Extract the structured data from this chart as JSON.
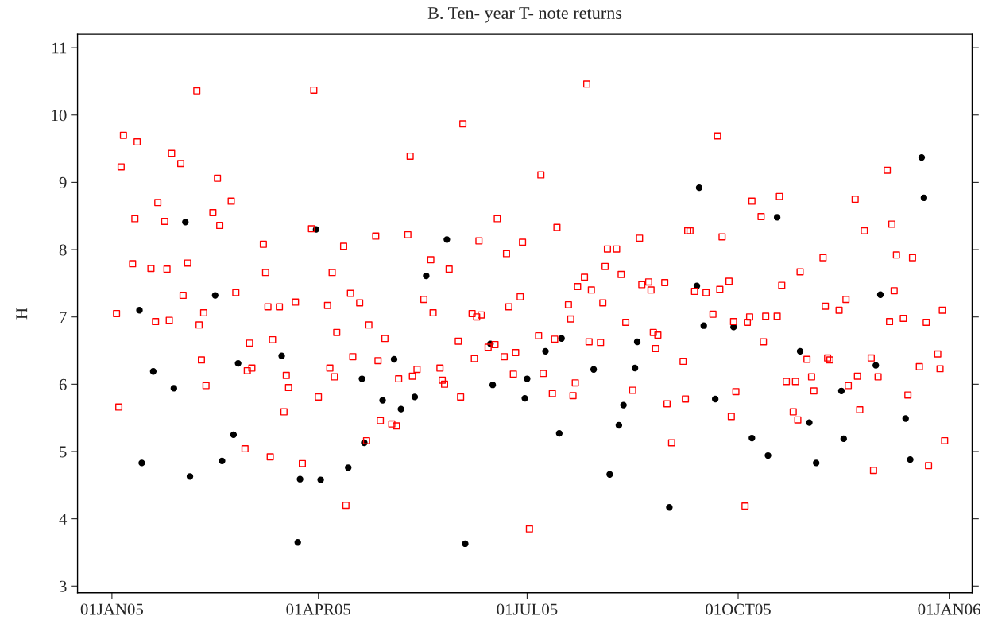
{
  "chart_data": {
    "type": "scatter",
    "title": "B. Ten- year T- note returns",
    "ylabel": "H",
    "xlim": [
      "2004-12-17",
      "2006-01-11"
    ],
    "xticks": [
      {
        "value": "2005-01-01",
        "label": "01JAN05"
      },
      {
        "value": "2005-04-01",
        "label": "01APR05"
      },
      {
        "value": "2005-07-01",
        "label": "01JUL05"
      },
      {
        "value": "2005-10-01",
        "label": "01OCT05"
      },
      {
        "value": "2006-01-01",
        "label": "01JAN06"
      }
    ],
    "ylim": [
      2.9,
      11.2
    ],
    "yticks": [
      3,
      4,
      5,
      6,
      7,
      8,
      9,
      10,
      11
    ],
    "series": [
      {
        "color": "#000000",
        "marker": "circle",
        "x": [
          "2005-01-13",
          "2005-01-19",
          "2005-01-14",
          "2005-01-28",
          "2005-02-02",
          "2005-02-04",
          "2005-02-15",
          "2005-02-18",
          "2005-02-23",
          "2005-02-25",
          "2005-03-16",
          "2005-03-23",
          "2005-03-24",
          "2005-03-31",
          "2005-04-02",
          "2005-04-14",
          "2005-04-20",
          "2005-04-21",
          "2005-04-29",
          "2005-05-04",
          "2005-05-07",
          "2005-05-13",
          "2005-05-18",
          "2005-05-27",
          "2005-06-04",
          "2005-06-15",
          "2005-06-16",
          "2005-06-30",
          "2005-07-01",
          "2005-07-09",
          "2005-07-15",
          "2005-07-16",
          "2005-07-30",
          "2005-08-06",
          "2005-08-10",
          "2005-08-12",
          "2005-08-17",
          "2005-08-18",
          "2005-09-01",
          "2005-09-13",
          "2005-09-14",
          "2005-09-16",
          "2005-09-21",
          "2005-09-29",
          "2005-10-07",
          "2005-10-14",
          "2005-10-18",
          "2005-10-28",
          "2005-11-01",
          "2005-11-04",
          "2005-11-15",
          "2005-11-16",
          "2005-11-30",
          "2005-12-02",
          "2005-12-13",
          "2005-12-15",
          "2005-12-20",
          "2005-12-21"
        ],
        "values": [
          7.1,
          6.19,
          4.83,
          5.94,
          8.41,
          4.63,
          7.32,
          4.86,
          5.25,
          6.31,
          6.42,
          3.65,
          4.59,
          8.3,
          4.58,
          4.76,
          6.08,
          5.13,
          5.76,
          6.37,
          5.63,
          5.81,
          7.61,
          8.15,
          3.63,
          6.6,
          5.99,
          5.79,
          6.08,
          6.49,
          5.27,
          6.68,
          6.22,
          4.66,
          5.39,
          5.69,
          6.24,
          6.63,
          4.17,
          7.46,
          8.92,
          6.87,
          5.78,
          6.85,
          5.2,
          4.94,
          8.48,
          6.49,
          5.43,
          4.83,
          5.9,
          5.19,
          6.28,
          7.33,
          5.49,
          4.88,
          9.37,
          8.77
        ]
      },
      {
        "color": "#ff0000",
        "marker": "square",
        "x": [
          "2005-01-03",
          "2005-01-04",
          "2005-01-05",
          "2005-01-06",
          "2005-01-10",
          "2005-01-11",
          "2005-01-12",
          "2005-01-18",
          "2005-01-20",
          "2005-01-21",
          "2005-01-24",
          "2005-01-25",
          "2005-01-26",
          "2005-01-27",
          "2005-01-31",
          "2005-02-01",
          "2005-02-03",
          "2005-02-07",
          "2005-02-08",
          "2005-02-09",
          "2005-02-10",
          "2005-02-11",
          "2005-02-14",
          "2005-02-16",
          "2005-02-17",
          "2005-02-22",
          "2005-02-24",
          "2005-02-28",
          "2005-03-01",
          "2005-03-02",
          "2005-03-03",
          "2005-03-08",
          "2005-03-09",
          "2005-03-10",
          "2005-03-11",
          "2005-03-12",
          "2005-03-15",
          "2005-03-17",
          "2005-03-18",
          "2005-03-19",
          "2005-03-22",
          "2005-03-25",
          "2005-03-29",
          "2005-03-30",
          "2005-04-01",
          "2005-04-05",
          "2005-04-06",
          "2005-04-07",
          "2005-04-08",
          "2005-04-09",
          "2005-04-12",
          "2005-04-13",
          "2005-04-15",
          "2005-04-16",
          "2005-04-19",
          "2005-04-22",
          "2005-04-23",
          "2005-04-26",
          "2005-04-27",
          "2005-04-28",
          "2005-04-30",
          "2005-05-03",
          "2005-05-05",
          "2005-05-06",
          "2005-05-10",
          "2005-05-11",
          "2005-05-12",
          "2005-05-14",
          "2005-05-17",
          "2005-05-20",
          "2005-05-21",
          "2005-05-24",
          "2005-05-25",
          "2005-05-26",
          "2005-05-28",
          "2005-06-01",
          "2005-06-02",
          "2005-06-03",
          "2005-06-07",
          "2005-06-08",
          "2005-06-09",
          "2005-06-10",
          "2005-06-11",
          "2005-06-14",
          "2005-06-17",
          "2005-06-18",
          "2005-06-21",
          "2005-06-22",
          "2005-06-23",
          "2005-06-25",
          "2005-06-26",
          "2005-06-28",
          "2005-06-29",
          "2005-07-02",
          "2005-07-06",
          "2005-07-07",
          "2005-07-08",
          "2005-07-12",
          "2005-07-13",
          "2005-07-14",
          "2005-07-19",
          "2005-07-20",
          "2005-07-21",
          "2005-07-22",
          "2005-07-23",
          "2005-07-26",
          "2005-07-27",
          "2005-07-28",
          "2005-07-29",
          "2005-08-02",
          "2005-08-03",
          "2005-08-04",
          "2005-08-05",
          "2005-08-09",
          "2005-08-11",
          "2005-08-13",
          "2005-08-16",
          "2005-08-19",
          "2005-08-20",
          "2005-08-23",
          "2005-08-24",
          "2005-08-25",
          "2005-08-26",
          "2005-08-27",
          "2005-08-30",
          "2005-08-31",
          "2005-09-02",
          "2005-09-07",
          "2005-09-08",
          "2005-09-09",
          "2005-09-10",
          "2005-09-12",
          "2005-09-17",
          "2005-09-20",
          "2005-09-22",
          "2005-09-23",
          "2005-09-24",
          "2005-09-27",
          "2005-09-28",
          "2005-09-29",
          "2005-09-30",
          "2005-10-04",
          "2005-10-05",
          "2005-10-06",
          "2005-10-07",
          "2005-10-11",
          "2005-10-12",
          "2005-10-13",
          "2005-10-18",
          "2005-10-19",
          "2005-10-20",
          "2005-10-22",
          "2005-10-25",
          "2005-10-26",
          "2005-10-27",
          "2005-10-28",
          "2005-10-31",
          "2005-11-02",
          "2005-11-03",
          "2005-11-07",
          "2005-11-08",
          "2005-11-09",
          "2005-11-10",
          "2005-11-14",
          "2005-11-17",
          "2005-11-18",
          "2005-11-21",
          "2005-11-22",
          "2005-11-23",
          "2005-11-25",
          "2005-11-28",
          "2005-11-29",
          "2005-12-01",
          "2005-12-05",
          "2005-12-06",
          "2005-12-07",
          "2005-12-08",
          "2005-12-09",
          "2005-12-12",
          "2005-12-14",
          "2005-12-16",
          "2005-12-19",
          "2005-12-22",
          "2005-12-23",
          "2005-12-27",
          "2005-12-28",
          "2005-12-29",
          "2005-12-30"
        ],
        "values": [
          7.05,
          5.66,
          9.23,
          9.7,
          7.79,
          8.46,
          9.6,
          7.72,
          6.93,
          8.7,
          8.42,
          7.71,
          6.95,
          9.43,
          9.28,
          7.32,
          7.8,
          10.36,
          6.88,
          6.36,
          7.06,
          5.98,
          8.55,
          9.06,
          8.36,
          8.72,
          7.36,
          5.04,
          6.2,
          6.61,
          6.24,
          8.08,
          7.66,
          7.15,
          4.92,
          6.66,
          7.15,
          5.59,
          6.13,
          5.95,
          7.22,
          4.82,
          8.31,
          10.37,
          5.81,
          7.17,
          6.24,
          7.66,
          6.11,
          6.77,
          8.05,
          4.2,
          7.35,
          6.41,
          7.21,
          5.16,
          6.88,
          8.2,
          6.35,
          5.46,
          6.68,
          5.41,
          5.38,
          6.08,
          8.22,
          9.39,
          6.12,
          6.22,
          7.26,
          7.85,
          7.06,
          6.24,
          6.06,
          6.0,
          7.71,
          6.64,
          5.81,
          9.87,
          7.05,
          6.38,
          7.0,
          8.13,
          7.03,
          6.55,
          6.59,
          8.46,
          6.41,
          7.94,
          7.15,
          6.15,
          6.47,
          7.3,
          8.11,
          3.85,
          6.72,
          9.11,
          6.16,
          5.86,
          6.67,
          8.33,
          7.18,
          6.97,
          5.83,
          6.02,
          7.45,
          7.59,
          10.46,
          6.63,
          7.4,
          6.62,
          7.21,
          7.75,
          8.01,
          8.01,
          7.63,
          6.92,
          5.91,
          8.17,
          7.48,
          7.52,
          7.4,
          6.77,
          6.53,
          6.73,
          7.51,
          5.71,
          5.13,
          6.34,
          5.78,
          8.28,
          8.28,
          7.38,
          7.36,
          7.04,
          9.69,
          7.41,
          8.19,
          7.53,
          5.52,
          6.93,
          5.89,
          4.19,
          6.92,
          7.0,
          8.72,
          8.49,
          6.63,
          7.01,
          7.01,
          8.79,
          7.47,
          6.04,
          5.59,
          6.04,
          5.47,
          7.67,
          6.37,
          6.11,
          5.9,
          7.88,
          7.16,
          6.39,
          6.36,
          7.1,
          7.26,
          5.98,
          8.75,
          6.12,
          5.62,
          8.28,
          6.39,
          4.72,
          6.11,
          9.18,
          6.93,
          8.38,
          7.39,
          7.92,
          6.98,
          5.84,
          7.88,
          6.26,
          6.92,
          4.79,
          6.45,
          6.23,
          7.1,
          5.16
        ]
      }
    ]
  }
}
